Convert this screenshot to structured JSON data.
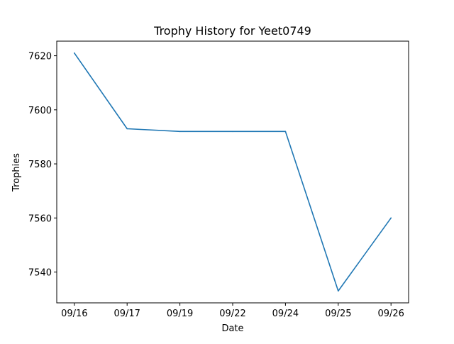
{
  "chart_data": {
    "type": "line",
    "title": "Trophy History for Yeet0749",
    "xlabel": "Date",
    "ylabel": "Trophies",
    "categories": [
      "09/16",
      "09/17",
      "09/19",
      "09/22",
      "09/24",
      "09/25",
      "09/26"
    ],
    "series": [
      {
        "values": [
          7621,
          7593,
          7592,
          7592,
          7592,
          7533,
          7560
        ],
        "color": "#1f77b4"
      }
    ],
    "yticks": [
      7540,
      7560,
      7580,
      7600,
      7620
    ],
    "ylim": [
      7528.6,
      7625.4
    ],
    "grid": false,
    "legend": "none"
  }
}
